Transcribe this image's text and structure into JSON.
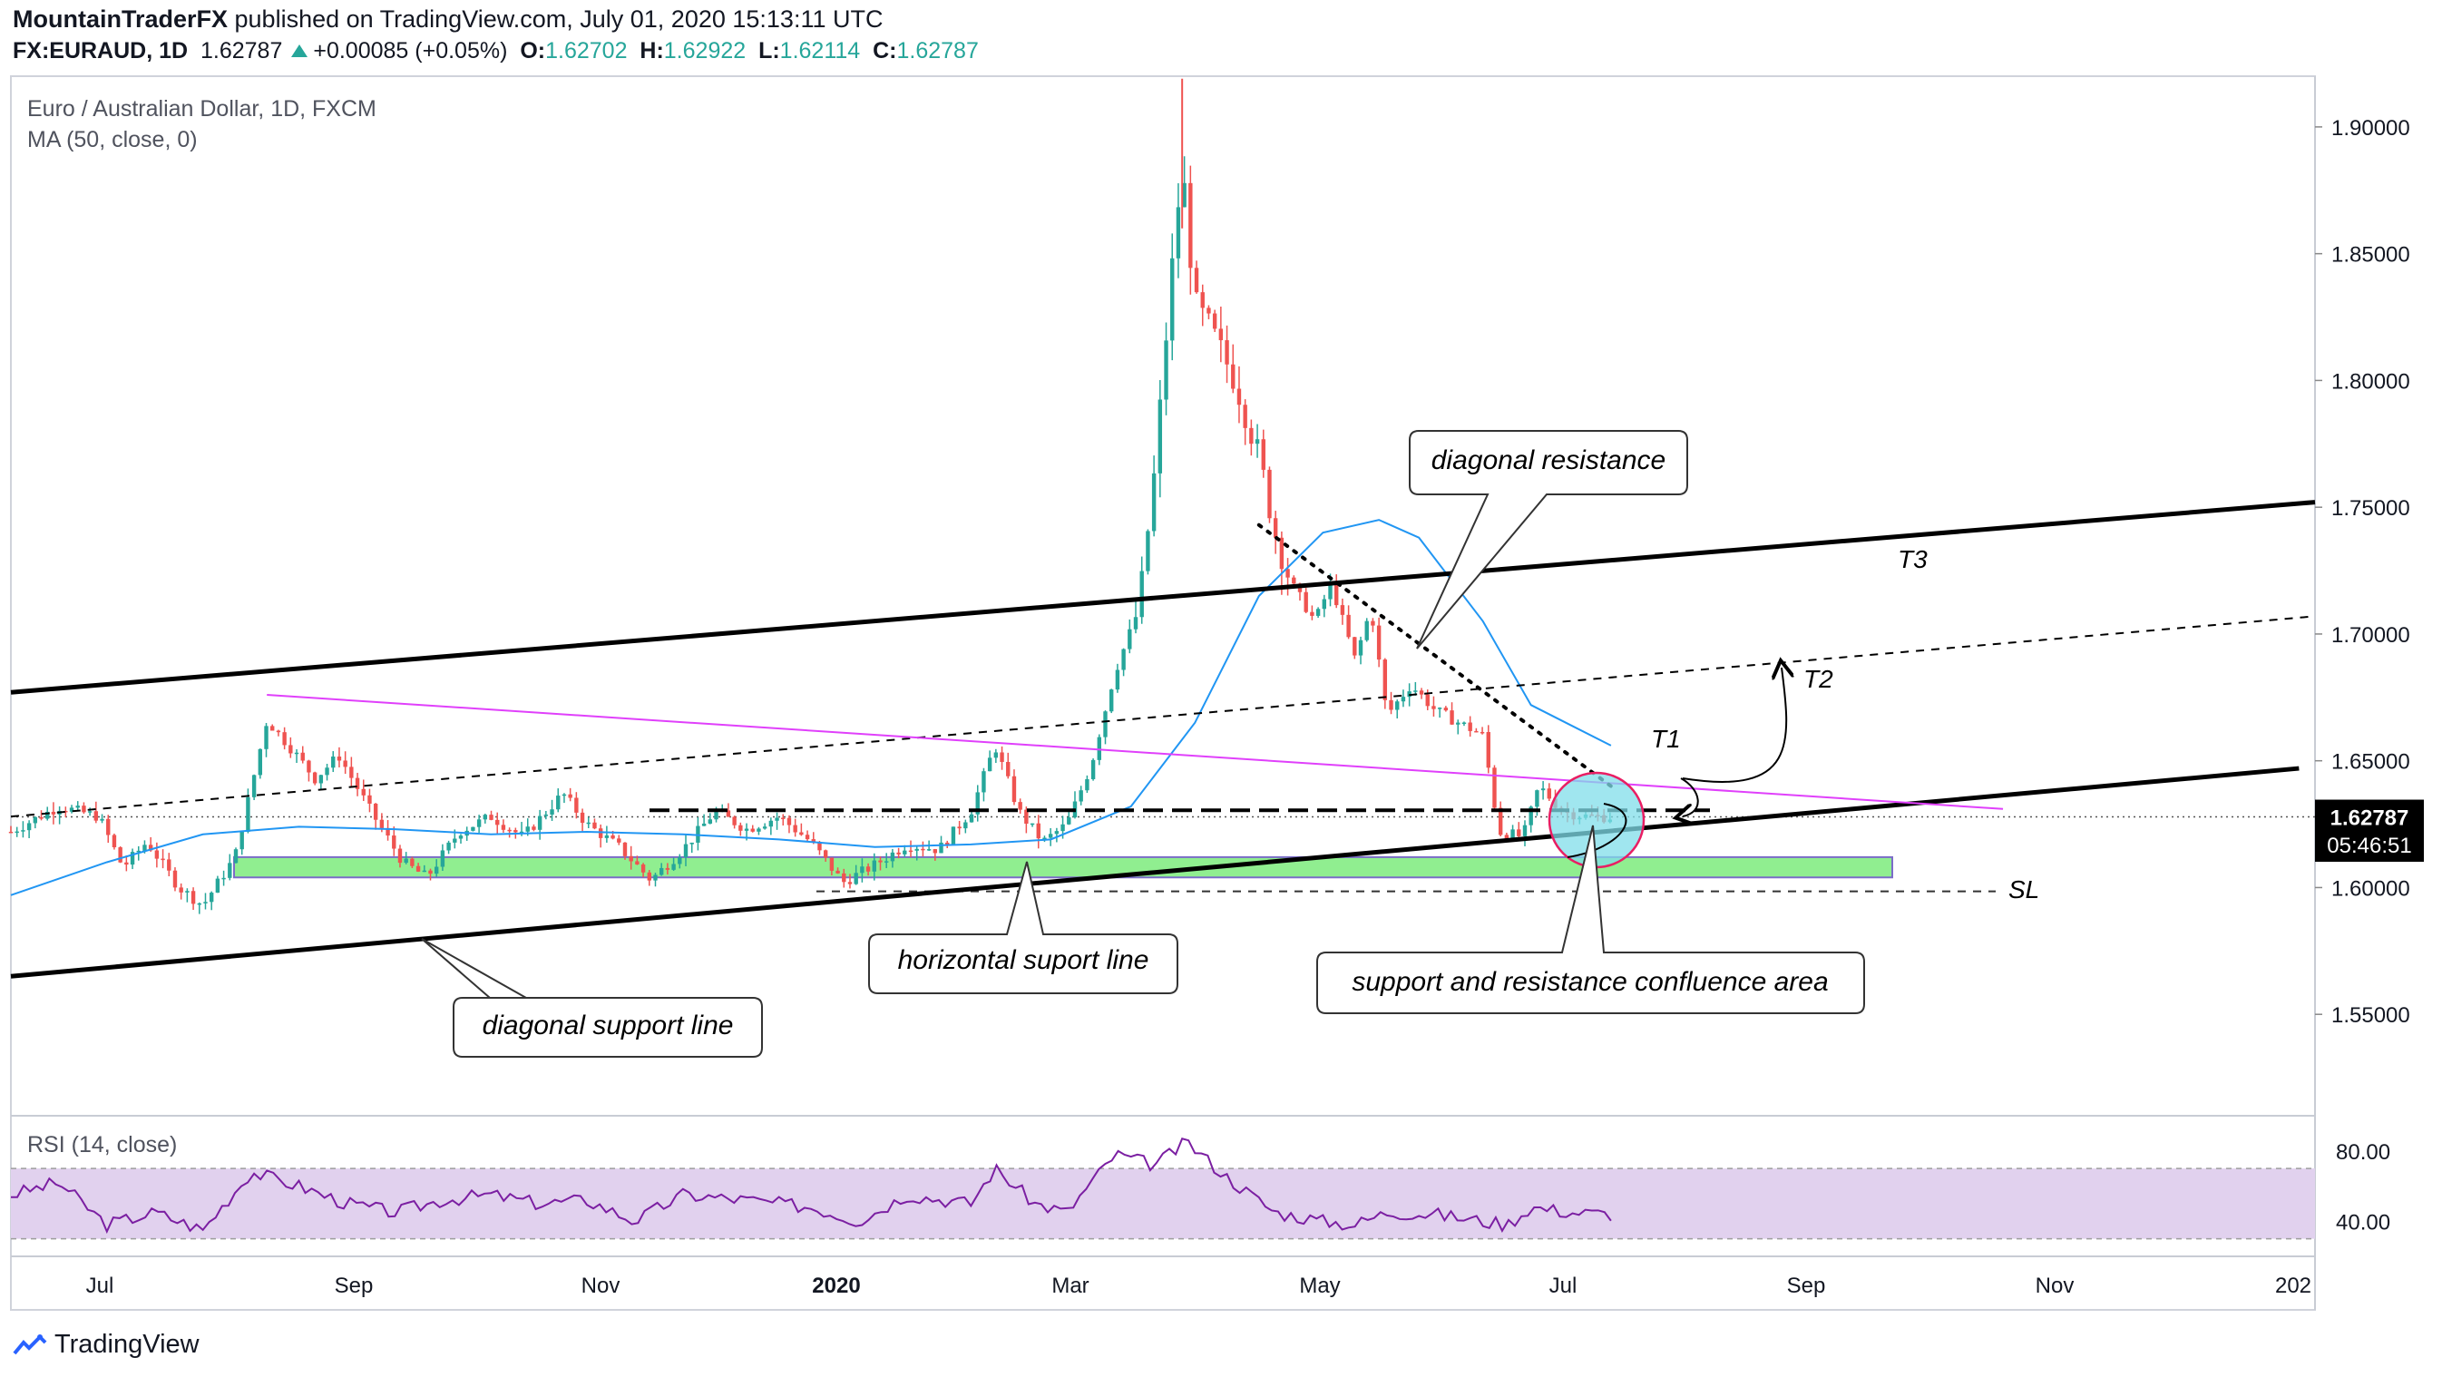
{
  "header": {
    "author": "MountainTraderFX",
    "published_text": " published on TradingView.com, July 01, 2020 15:13:11 UTC",
    "symbol": "FX:EURAUD, 1D",
    "last": "1.62787",
    "change": "+0.00085 (+0.05%)",
    "o_label": "O:",
    "o": "1.62702",
    "h_label": "H:",
    "h": "1.62922",
    "l_label": "L:",
    "l": "1.62114",
    "c_label": "C:",
    "c": "1.62787"
  },
  "legend": {
    "title": "Euro / Australian Dollar, 1D, FXCM",
    "ma": "MA (50, close, 0)",
    "rsi": "RSI (14, close)"
  },
  "price_axis": {
    "ticks": [
      "1.90000",
      "1.85000",
      "1.80000",
      "1.75000",
      "1.70000",
      "1.65000",
      "1.60000",
      "1.55000"
    ],
    "last_price": "1.62787",
    "countdown": "05:46:51"
  },
  "rsi_axis": {
    "ticks": [
      "80.00",
      "40.00"
    ]
  },
  "time_axis": {
    "labels": [
      "Jul",
      "Sep",
      "Nov",
      "2020",
      "Mar",
      "May",
      "Jul",
      "Sep",
      "Nov",
      "202"
    ]
  },
  "annotations": {
    "diagonal_resistance": "diagonal resistance",
    "horizontal_support": "horizontal suport line",
    "diagonal_support": "diagonal support line",
    "confluence": "support and resistance confluence  area",
    "t1": "T1",
    "t2": "T2",
    "t3": "T3",
    "sl": "SL"
  },
  "branding": {
    "name": "TradingView"
  },
  "colors": {
    "up": "#26a69a",
    "down": "#ef5350",
    "ma": "#2196f3",
    "rsi": "#7b1fa2",
    "rsi_band": "#e1d1ee",
    "zone": "#90ee90",
    "pink_line": "#e040fb",
    "confluence": "#80deea"
  },
  "chart_data": {
    "type": "candlestick",
    "title": "Euro / Australian Dollar, 1D, FXCM",
    "timeframe": "1D",
    "ylim": [
      1.51,
      1.92
    ],
    "y_ticks": [
      1.9,
      1.85,
      1.8,
      1.75,
      1.7,
      1.65,
      1.6,
      1.55
    ],
    "x_ticks": [
      "Jul",
      "Sep",
      "Nov",
      "2020",
      "Mar",
      "May",
      "Jul",
      "Sep",
      "Nov",
      "202"
    ],
    "last_close": 1.62787,
    "ohlc_last": {
      "open": 1.62702,
      "high": 1.62922,
      "low": 1.62114,
      "close": 1.62787
    },
    "close_path": [
      [
        0,
        1.622
      ],
      [
        30,
        1.632
      ],
      [
        55,
        1.628
      ],
      [
        70,
        1.608
      ],
      [
        85,
        1.618
      ],
      [
        105,
        1.6
      ],
      [
        120,
        1.593
      ],
      [
        140,
        1.612
      ],
      [
        160,
        1.666
      ],
      [
        175,
        1.655
      ],
      [
        190,
        1.643
      ],
      [
        205,
        1.652
      ],
      [
        225,
        1.63
      ],
      [
        245,
        1.61
      ],
      [
        260,
        1.604
      ],
      [
        280,
        1.622
      ],
      [
        300,
        1.628
      ],
      [
        320,
        1.62
      ],
      [
        345,
        1.637
      ],
      [
        360,
        1.625
      ],
      [
        380,
        1.616
      ],
      [
        400,
        1.603
      ],
      [
        420,
        1.615
      ],
      [
        440,
        1.63
      ],
      [
        460,
        1.623
      ],
      [
        480,
        1.628
      ],
      [
        500,
        1.618
      ],
      [
        520,
        1.602
      ],
      [
        540,
        1.609
      ],
      [
        560,
        1.617
      ],
      [
        580,
        1.615
      ],
      [
        600,
        1.63
      ],
      [
        615,
        1.656
      ],
      [
        630,
        1.63
      ],
      [
        645,
        1.618
      ],
      [
        660,
        1.625
      ],
      [
        675,
        1.648
      ],
      [
        690,
        1.685
      ],
      [
        705,
        1.71
      ],
      [
        715,
        1.765
      ],
      [
        725,
        1.84
      ],
      [
        732,
        1.885
      ],
      [
        740,
        1.83
      ],
      [
        750,
        1.82
      ],
      [
        765,
        1.8
      ],
      [
        780,
        1.77
      ],
      [
        790,
        1.74
      ],
      [
        800,
        1.72
      ],
      [
        815,
        1.705
      ],
      [
        825,
        1.72
      ],
      [
        840,
        1.69
      ],
      [
        850,
        1.71
      ],
      [
        860,
        1.668
      ],
      [
        875,
        1.68
      ],
      [
        890,
        1.67
      ],
      [
        905,
        1.665
      ],
      [
        920,
        1.66
      ],
      [
        930,
        1.622
      ],
      [
        945,
        1.62
      ],
      [
        955,
        1.64
      ],
      [
        970,
        1.63
      ],
      [
        985,
        1.628
      ],
      [
        1000,
        1.6279
      ]
    ],
    "series": [
      {
        "name": "MA (50, close, 0)",
        "type": "line",
        "points": [
          [
            0,
            1.597
          ],
          [
            60,
            1.61
          ],
          [
            120,
            1.621
          ],
          [
            180,
            1.624
          ],
          [
            240,
            1.623
          ],
          [
            300,
            1.621
          ],
          [
            360,
            1.622
          ],
          [
            420,
            1.621
          ],
          [
            480,
            1.619
          ],
          [
            540,
            1.616
          ],
          [
            600,
            1.617
          ],
          [
            650,
            1.619
          ],
          [
            700,
            1.632
          ],
          [
            740,
            1.665
          ],
          [
            780,
            1.715
          ],
          [
            820,
            1.74
          ],
          [
            855,
            1.745
          ],
          [
            880,
            1.738
          ],
          [
            920,
            1.705
          ],
          [
            950,
            1.672
          ],
          [
            975,
            1.664
          ],
          [
            1000,
            1.656
          ]
        ]
      },
      {
        "name": "RSI (14, close)",
        "type": "line",
        "points": [
          [
            0,
            55
          ],
          [
            30,
            62
          ],
          [
            60,
            38
          ],
          [
            90,
            45
          ],
          [
            120,
            35
          ],
          [
            150,
            68
          ],
          [
            180,
            60
          ],
          [
            210,
            50
          ],
          [
            240,
            45
          ],
          [
            270,
            52
          ],
          [
            300,
            55
          ],
          [
            330,
            50
          ],
          [
            360,
            52
          ],
          [
            390,
            40
          ],
          [
            420,
            55
          ],
          [
            460,
            52
          ],
          [
            500,
            48
          ],
          [
            530,
            40
          ],
          [
            560,
            55
          ],
          [
            600,
            50
          ],
          [
            615,
            70
          ],
          [
            640,
            50
          ],
          [
            660,
            45
          ],
          [
            690,
            78
          ],
          [
            715,
            72
          ],
          [
            735,
            85
          ],
          [
            760,
            65
          ],
          [
            790,
            45
          ],
          [
            820,
            40
          ],
          [
            840,
            38
          ],
          [
            860,
            45
          ],
          [
            890,
            44
          ],
          [
            920,
            40
          ],
          [
            935,
            38
          ],
          [
            950,
            48
          ],
          [
            975,
            45
          ],
          [
            1000,
            44
          ]
        ]
      }
    ],
    "rsi_ylim": [
      20,
      100
    ],
    "rsi_band": [
      30,
      70
    ],
    "drawings": [
      {
        "label": "diagonal support line",
        "from": [
          0,
          1.565
        ],
        "to": [
          1430,
          1.647
        ]
      },
      {
        "label": "T3",
        "from": [
          0,
          1.677
        ],
        "to": [
          1440,
          1.752
        ]
      },
      {
        "label": "T2",
        "from": [
          0,
          1.628
        ],
        "to": [
          1440,
          1.707
        ]
      },
      {
        "label": "diagonal resistance",
        "from": [
          780,
          1.743
        ],
        "to": [
          1000,
          1.64
        ]
      },
      {
        "label": "pink line",
        "from": [
          160,
          1.676
        ],
        "to": [
          1245,
          1.631
        ]
      },
      {
        "label": "SL",
        "level": 1.5985
      },
      {
        "label": "horizontal suport line",
        "zone": [
          1.604,
          1.612
        ]
      }
    ]
  }
}
